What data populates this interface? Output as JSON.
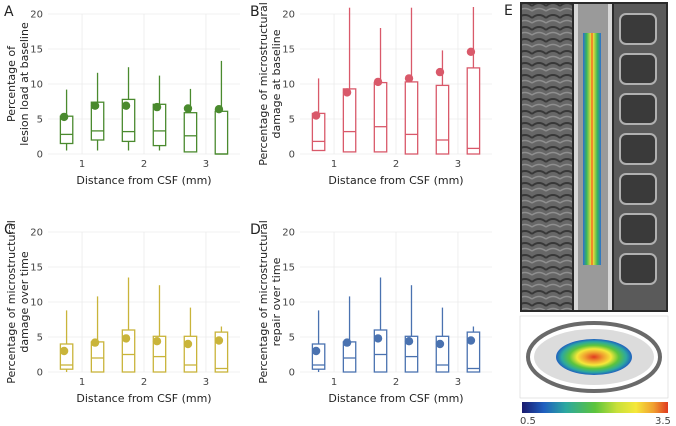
{
  "figure_title": "",
  "chart_data": [
    {
      "type": "boxplot",
      "panel": "A",
      "color": "#4a8a2e",
      "xlabel": "Distance from CSF (mm)",
      "ylabel": [
        "Percentage of",
        "lesion load at baseline"
      ],
      "ylim": [
        0,
        20
      ],
      "yticks": [
        0,
        5,
        10,
        15,
        20
      ],
      "xticks": [
        1,
        2,
        3
      ],
      "boxes": [
        {
          "x": 0.75,
          "min": 0.5,
          "q1": 1.5,
          "median": 2.8,
          "q3": 5.4,
          "max": 9.2,
          "mean": 5.3
        },
        {
          "x": 1.25,
          "min": 0.5,
          "q1": 2.0,
          "median": 3.3,
          "q3": 7.4,
          "max": 11.6,
          "mean": 6.9
        },
        {
          "x": 1.75,
          "min": 0.5,
          "q1": 1.8,
          "median": 3.2,
          "q3": 7.8,
          "max": 12.4,
          "mean": 6.9
        },
        {
          "x": 2.25,
          "min": 0.5,
          "q1": 1.2,
          "median": 3.3,
          "q3": 7.1,
          "max": 11.2,
          "mean": 6.7
        },
        {
          "x": 2.75,
          "min": 0.3,
          "q1": 0.3,
          "median": 2.6,
          "q3": 5.9,
          "max": 9.3,
          "mean": 6.5
        },
        {
          "x": 3.25,
          "min": 0.0,
          "q1": 0.0,
          "median": 0.0,
          "q3": 6.1,
          "max": 13.3,
          "mean": 6.4
        }
      ]
    },
    {
      "type": "boxplot",
      "panel": "B",
      "color": "#d9596a",
      "xlabel": "Distance from CSF (mm)",
      "ylabel": [
        "Percentage of microstructural",
        "damage at baseline"
      ],
      "ylim": [
        0,
        20
      ],
      "yticks": [
        0,
        5,
        10,
        15,
        20
      ],
      "xticks": [
        1,
        2,
        3
      ],
      "boxes": [
        {
          "x": 0.75,
          "min": 0.5,
          "q1": 0.5,
          "median": 1.8,
          "q3": 5.8,
          "max": 10.8,
          "mean": 5.5
        },
        {
          "x": 1.25,
          "min": 0.3,
          "q1": 0.3,
          "median": 3.2,
          "q3": 9.3,
          "max": 20.9,
          "mean": 8.8
        },
        {
          "x": 1.75,
          "min": 0.3,
          "q1": 0.3,
          "median": 3.9,
          "q3": 10.2,
          "max": 18.0,
          "mean": 10.3
        },
        {
          "x": 2.25,
          "min": 0.0,
          "q1": 0.0,
          "median": 2.8,
          "q3": 10.3,
          "max": 20.9,
          "mean": 10.8
        },
        {
          "x": 2.75,
          "min": 0.0,
          "q1": 0.0,
          "median": 2.0,
          "q3": 9.8,
          "max": 14.8,
          "mean": 11.7
        },
        {
          "x": 3.25,
          "min": 0.0,
          "q1": 0.0,
          "median": 0.8,
          "q3": 12.3,
          "max": 21.0,
          "mean": 14.6
        }
      ]
    },
    {
      "type": "boxplot",
      "panel": "C",
      "color": "#c9b43a",
      "xlabel": "Distance from CSF (mm)",
      "ylabel": [
        "Percentage of microstructural",
        "damage over time"
      ],
      "ylim": [
        0,
        20
      ],
      "yticks": [
        0,
        5,
        10,
        15,
        20
      ],
      "xticks": [
        1,
        2,
        3
      ],
      "boxes": [
        {
          "x": 0.75,
          "min": 0.0,
          "q1": 0.4,
          "median": 1.0,
          "q3": 4.0,
          "max": 8.8,
          "mean": 3.0
        },
        {
          "x": 1.25,
          "min": 0.0,
          "q1": 0.0,
          "median": 2.0,
          "q3": 4.3,
          "max": 10.8,
          "mean": 4.2
        },
        {
          "x": 1.75,
          "min": 0.0,
          "q1": 0.0,
          "median": 2.5,
          "q3": 6.0,
          "max": 13.5,
          "mean": 4.8
        },
        {
          "x": 2.25,
          "min": 0.0,
          "q1": 0.0,
          "median": 2.2,
          "q3": 5.1,
          "max": 12.4,
          "mean": 4.4
        },
        {
          "x": 2.75,
          "min": 0.0,
          "q1": 0.0,
          "median": 1.0,
          "q3": 5.1,
          "max": 9.2,
          "mean": 4.0
        },
        {
          "x": 3.25,
          "min": 0.0,
          "q1": 0.0,
          "median": 0.5,
          "q3": 5.7,
          "max": 6.5,
          "mean": 4.5
        }
      ]
    },
    {
      "type": "boxplot",
      "panel": "D",
      "color": "#4a72b0",
      "xlabel": "Distance from CSF (mm)",
      "ylabel": [
        "Percentage of microstructural",
        "repair over time"
      ],
      "ylim": [
        0,
        20
      ],
      "yticks": [
        0,
        5,
        10,
        15,
        20
      ],
      "xticks": [
        1,
        2,
        3
      ],
      "boxes": [
        {
          "x": 0.75,
          "min": 0.0,
          "q1": 0.4,
          "median": 1.0,
          "q3": 4.0,
          "max": 8.8,
          "mean": 3.0
        },
        {
          "x": 1.25,
          "min": 0.0,
          "q1": 0.0,
          "median": 2.0,
          "q3": 4.3,
          "max": 10.8,
          "mean": 4.2
        },
        {
          "x": 1.75,
          "min": 0.0,
          "q1": 0.0,
          "median": 2.5,
          "q3": 6.0,
          "max": 13.5,
          "mean": 4.8
        },
        {
          "x": 2.25,
          "min": 0.0,
          "q1": 0.0,
          "median": 2.2,
          "q3": 5.1,
          "max": 12.4,
          "mean": 4.4
        },
        {
          "x": 2.75,
          "min": 0.0,
          "q1": 0.0,
          "median": 1.0,
          "q3": 5.1,
          "max": 9.2,
          "mean": 4.0
        },
        {
          "x": 3.25,
          "min": 0.0,
          "q1": 0.0,
          "median": 0.5,
          "q3": 5.7,
          "max": 6.5,
          "mean": 4.5
        }
      ]
    }
  ],
  "panel_e": {
    "letter": "E",
    "description_images": [
      "sagittal spinal cord MRI with probability overlay",
      "axial cord probability map"
    ],
    "colorbar": {
      "min_label": "0.5",
      "max_label": "3.5",
      "colors": [
        "#1a1a6e",
        "#1f5fbf",
        "#2ca8a0",
        "#5cc43c",
        "#c8e03a",
        "#f5e83a",
        "#f0a030",
        "#e03a20"
      ]
    }
  }
}
